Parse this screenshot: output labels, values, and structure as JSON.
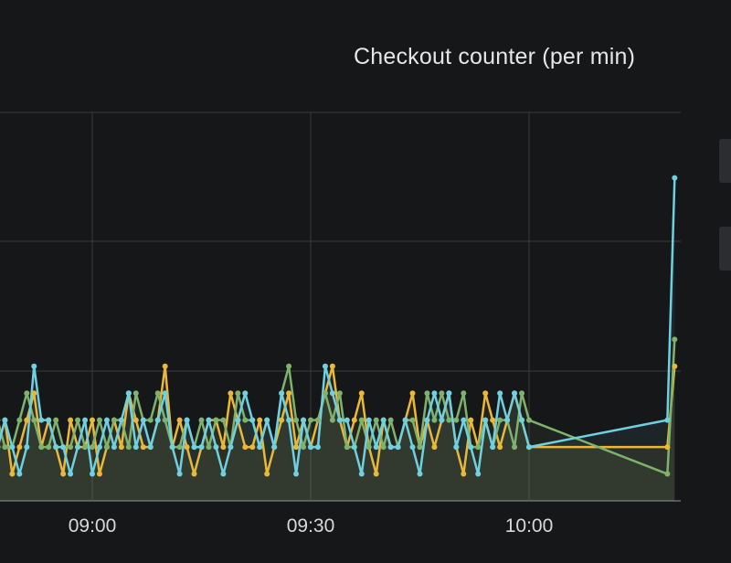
{
  "panel": {
    "title": "Checkout counter (per min)"
  },
  "chart_data": {
    "type": "line",
    "title": "Checkout counter (per min)",
    "xlabel": "",
    "ylabel": "",
    "x_ticks": [
      "09:00",
      "09:30",
      "10:00"
    ],
    "grid": true,
    "colors": {
      "background": "#161719",
      "grid": "#3a3b3e",
      "axis": "#6b6c70",
      "text": "#d8d9da"
    },
    "series": [
      {
        "color": "#eab839",
        "x": [
          "08:47",
          "08:48",
          "08:49",
          "08:50",
          "08:51",
          "08:52",
          "08:53",
          "08:54",
          "08:55",
          "08:56",
          "08:57",
          "08:58",
          "08:59",
          "09:00",
          "09:01",
          "09:02",
          "09:03",
          "09:04",
          "09:05",
          "09:06",
          "09:07",
          "09:08",
          "09:09",
          "09:10",
          "09:11",
          "09:12",
          "09:13",
          "09:14",
          "09:15",
          "09:16",
          "09:17",
          "09:18",
          "09:19",
          "09:20",
          "09:21",
          "09:22",
          "09:23",
          "09:24",
          "09:25",
          "09:26",
          "09:27",
          "09:28",
          "09:29",
          "09:30",
          "09:31",
          "09:32",
          "09:33",
          "09:34",
          "09:35",
          "09:36",
          "09:37",
          "09:38",
          "09:39",
          "09:40",
          "09:41",
          "09:42",
          "09:43",
          "09:44",
          "09:45",
          "09:46",
          "09:47",
          "09:48",
          "09:49",
          "09:50",
          "09:51",
          "09:52",
          "09:53",
          "09:54",
          "09:55",
          "09:56",
          "09:57",
          "09:58",
          "09:59",
          "10:00",
          "10:19",
          "10:20"
        ],
        "y": [
          2,
          3,
          1,
          2,
          3,
          4,
          2,
          3,
          2,
          1,
          3,
          2,
          2,
          3,
          1,
          2,
          3,
          2,
          4,
          3,
          2,
          2,
          3,
          5,
          2,
          3,
          2,
          1,
          2,
          3,
          3,
          2,
          4,
          3,
          2,
          2,
          3,
          1,
          2,
          3,
          4,
          2,
          3,
          2,
          3,
          4,
          5,
          3,
          2,
          3,
          4,
          2,
          1,
          3,
          2,
          2,
          3,
          4,
          2,
          3,
          2,
          3,
          4,
          2,
          1,
          3,
          2,
          4,
          3,
          2,
          3,
          4,
          3,
          2,
          2,
          5
        ]
      },
      {
        "color": "#7eb26d",
        "x": [
          "08:47",
          "08:48",
          "08:49",
          "08:50",
          "08:51",
          "08:52",
          "08:53",
          "08:54",
          "08:55",
          "08:56",
          "08:57",
          "08:58",
          "08:59",
          "09:00",
          "09:01",
          "09:02",
          "09:03",
          "09:04",
          "09:05",
          "09:06",
          "09:07",
          "09:08",
          "09:09",
          "09:10",
          "09:11",
          "09:12",
          "09:13",
          "09:14",
          "09:15",
          "09:16",
          "09:17",
          "09:18",
          "09:19",
          "09:20",
          "09:21",
          "09:22",
          "09:23",
          "09:24",
          "09:25",
          "09:26",
          "09:27",
          "09:28",
          "09:29",
          "09:30",
          "09:31",
          "09:32",
          "09:33",
          "09:34",
          "09:35",
          "09:36",
          "09:37",
          "09:38",
          "09:39",
          "09:40",
          "09:41",
          "09:42",
          "09:43",
          "09:44",
          "09:45",
          "09:46",
          "09:47",
          "09:48",
          "09:49",
          "09:50",
          "09:51",
          "09:52",
          "09:53",
          "09:54",
          "09:55",
          "09:56",
          "09:57",
          "09:58",
          "09:59",
          "10:00",
          "10:19",
          "10:20"
        ],
        "y": [
          3,
          2,
          2,
          3,
          4,
          3,
          2,
          2,
          3,
          2,
          2,
          3,
          2,
          2,
          3,
          2,
          3,
          3,
          2,
          4,
          3,
          3,
          4,
          3,
          2,
          2,
          3,
          2,
          3,
          2,
          3,
          3,
          2,
          4,
          3,
          3,
          2,
          3,
          2,
          4,
          5,
          3,
          2,
          3,
          3,
          4,
          3,
          4,
          2,
          2,
          3,
          2,
          3,
          2,
          3,
          2,
          3,
          3,
          2,
          4,
          3,
          4,
          3,
          3,
          4,
          2,
          2,
          3,
          2,
          3,
          3,
          2,
          4,
          3,
          1,
          6
        ]
      },
      {
        "color": "#6ed0e0",
        "x": [
          "08:47",
          "08:48",
          "08:49",
          "08:50",
          "08:51",
          "08:52",
          "08:53",
          "08:54",
          "08:55",
          "08:56",
          "08:57",
          "08:58",
          "08:59",
          "09:00",
          "09:01",
          "09:02",
          "09:03",
          "09:04",
          "09:05",
          "09:06",
          "09:07",
          "09:08",
          "09:09",
          "09:10",
          "09:11",
          "09:12",
          "09:13",
          "09:14",
          "09:15",
          "09:16",
          "09:17",
          "09:18",
          "09:19",
          "09:20",
          "09:21",
          "09:22",
          "09:23",
          "09:24",
          "09:25",
          "09:26",
          "09:27",
          "09:28",
          "09:29",
          "09:30",
          "09:31",
          "09:32",
          "09:33",
          "09:34",
          "09:35",
          "09:36",
          "09:37",
          "09:38",
          "09:39",
          "09:40",
          "09:41",
          "09:42",
          "09:43",
          "09:44",
          "09:45",
          "09:46",
          "09:47",
          "09:48",
          "09:49",
          "09:50",
          "09:51",
          "09:52",
          "09:53",
          "09:54",
          "09:55",
          "09:56",
          "09:57",
          "09:58",
          "09:59",
          "10:00",
          "10:19",
          "10:20"
        ],
        "y": [
          2,
          3,
          2,
          1,
          2,
          5,
          3,
          3,
          2,
          2,
          1,
          2,
          3,
          1,
          2,
          3,
          2,
          3,
          4,
          2,
          3,
          2,
          3,
          4,
          2,
          1,
          3,
          2,
          2,
          3,
          2,
          1,
          2,
          3,
          4,
          3,
          2,
          3,
          2,
          4,
          3,
          1,
          3,
          2,
          2,
          5,
          4,
          3,
          3,
          2,
          1,
          3,
          2,
          3,
          2,
          2,
          3,
          2,
          1,
          3,
          4,
          3,
          4,
          2,
          3,
          2,
          1,
          3,
          2,
          4,
          3,
          4,
          3,
          2,
          3,
          12
        ]
      }
    ]
  }
}
